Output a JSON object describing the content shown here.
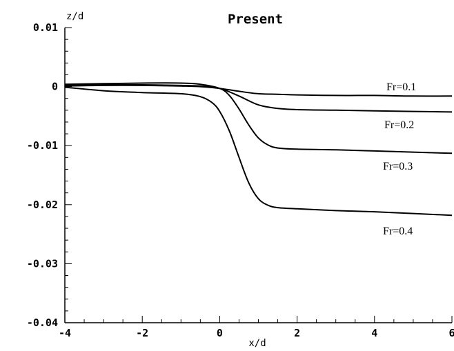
{
  "chart_data": {
    "type": "line",
    "title": "Present",
    "xlabel": "x/d",
    "ylabel": "z/d",
    "xlim": [
      -4,
      6
    ],
    "ylim": [
      -0.04,
      0.01
    ],
    "x_ticks": [
      -4,
      -2,
      0,
      2,
      4,
      6
    ],
    "x_tick_labels": [
      "-4",
      "-2",
      "0",
      "2",
      "4",
      "6"
    ],
    "y_ticks": [
      0.01,
      0,
      -0.01,
      -0.02,
      -0.03,
      -0.04
    ],
    "y_tick_labels": [
      "0.01",
      "0",
      "-0.01",
      "-0.02",
      "-0.03",
      "-0.04"
    ],
    "grid": false,
    "series": [
      {
        "name": "Fr=0.1",
        "x": [
          -4,
          -3,
          -2,
          -1,
          -0.5,
          0,
          0.5,
          1,
          1.5,
          2,
          3,
          4,
          5,
          6
        ],
        "y": [
          0.0001,
          0.0002,
          0.0002,
          0.0001,
          0.0,
          -0.0003,
          -0.0008,
          -0.0012,
          -0.0013,
          -0.0014,
          -0.0015,
          -0.0015,
          -0.0016,
          -0.0016
        ]
      },
      {
        "name": "Fr=0.2",
        "x": [
          -4,
          -3,
          -2,
          -1,
          -0.5,
          0,
          0.5,
          1,
          1.5,
          2,
          3,
          4,
          5,
          6
        ],
        "y": [
          0.0002,
          0.0003,
          0.0003,
          0.0002,
          0.0001,
          -0.0003,
          -0.0016,
          -0.0031,
          -0.0037,
          -0.0039,
          -0.004,
          -0.0041,
          -0.0042,
          -0.0043
        ]
      },
      {
        "name": "Fr=0.3",
        "x": [
          -4,
          -3,
          -2,
          -1,
          -0.5,
          0,
          0.25,
          0.5,
          0.75,
          1,
          1.25,
          1.5,
          2,
          3,
          4,
          5,
          6
        ],
        "y": [
          0.0004,
          0.0005,
          0.0006,
          0.0006,
          0.0004,
          -0.0003,
          -0.0015,
          -0.0038,
          -0.0065,
          -0.0087,
          -0.0099,
          -0.0104,
          -0.0106,
          -0.0107,
          -0.0109,
          -0.0111,
          -0.0113
        ]
      },
      {
        "name": "Fr=0.4",
        "x": [
          -4,
          -3,
          -2,
          -1,
          -0.5,
          -0.2,
          0,
          0.25,
          0.5,
          0.75,
          1,
          1.25,
          1.5,
          2,
          3,
          4,
          5,
          6
        ],
        "y": [
          -0.0001,
          -0.0007,
          -0.001,
          -0.0012,
          -0.0017,
          -0.0027,
          -0.0042,
          -0.0075,
          -0.012,
          -0.0163,
          -0.019,
          -0.0201,
          -0.0205,
          -0.0207,
          -0.021,
          -0.0212,
          -0.0215,
          -0.0218
        ]
      }
    ]
  }
}
